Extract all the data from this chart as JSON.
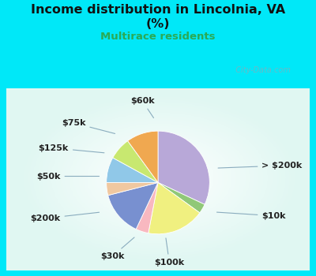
{
  "title_line1": "Income distribution in Lincolnia, VA",
  "title_line2": "(%)",
  "subtitle": "Multirace residents",
  "title_color": "#111111",
  "subtitle_color": "#2aaa55",
  "bg_outer": "#00e8f8",
  "watermark": "  City-Data.com",
  "labels": [
    "> $200k",
    "$10k",
    "$100k",
    "$30k",
    "$200k",
    "$50k",
    "$125k",
    "$75k",
    "$60k"
  ],
  "values": [
    32,
    3,
    18,
    4,
    14,
    4,
    8,
    7,
    10
  ],
  "colors": [
    "#b8a8d8",
    "#90c878",
    "#f0f080",
    "#f8b8c0",
    "#7890d0",
    "#f0c8a0",
    "#90c8e8",
    "#c8e870",
    "#f0a850"
  ],
  "start_angle": 90,
  "label_color": "#222222",
  "line_color": "#8aacbe"
}
